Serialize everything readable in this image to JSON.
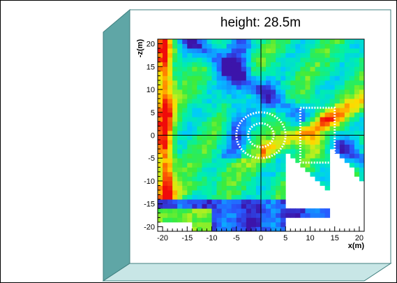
{
  "colors": {
    "frame_front": "#ffffff",
    "frame_side": "#5fa6a6",
    "frame_bottom": "#c8e6e6",
    "frame_edge": "#3f7f7f",
    "outer_border": "#000000"
  },
  "chart_data": {
    "type": "heatmap",
    "title": "height: 28.5m",
    "xlabel": "x(m)",
    "ylabel": "-z(m)",
    "xlim": [
      -21,
      21
    ],
    "ylim": [
      -21,
      21
    ],
    "xticks": [
      -20,
      -15,
      -10,
      -5,
      0,
      5,
      10,
      15,
      20
    ],
    "yticks": [
      -20,
      -15,
      -10,
      -5,
      0,
      5,
      10,
      15,
      20
    ],
    "colormap": "rainbow",
    "crosshair": {
      "x": 0,
      "y": 0
    },
    "overlays": [
      {
        "type": "circle",
        "cx": 0,
        "cy": 0,
        "r": 5,
        "style": "dotted",
        "color": "#ffffff"
      },
      {
        "type": "circle",
        "cx": 0,
        "cy": 0,
        "r": 2.6,
        "style": "dotted",
        "color": "#ffffff"
      },
      {
        "type": "rect",
        "x0": 8,
        "y0": -6,
        "x1": 15,
        "y1": 6,
        "style": "dotted",
        "color": "#ffffff"
      }
    ]
  }
}
